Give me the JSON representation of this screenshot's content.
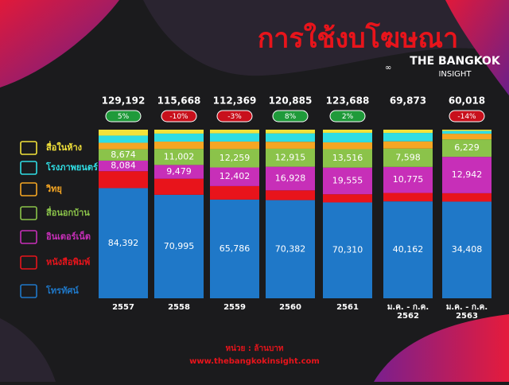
{
  "chart_data": {
    "type": "stacked-bar-normalized",
    "title": "การใช้งบโฆษณา",
    "brand": [
      "THE BANGKOK",
      "INSIGHT"
    ],
    "categories": [
      [
        "2557"
      ],
      [
        "2558"
      ],
      [
        "2559"
      ],
      [
        "2560"
      ],
      [
        "2561"
      ],
      [
        "ม.ค. - ก.ค.",
        "2562"
      ],
      [
        "ม.ค. - ก.ค.",
        "2563"
      ]
    ],
    "totals": [
      129192,
      115668,
      112369,
      120885,
      123688,
      69873,
      60018
    ],
    "total_labels": [
      "129,192",
      "115,668",
      "112,369",
      "120,885",
      "123,688",
      "69,873",
      "60,018"
    ],
    "changes": [
      "5%",
      "-10%",
      "-3%",
      "8%",
      "2%",
      null,
      "-14%"
    ],
    "series": [
      {
        "name": "โทรทัศน์",
        "color": "#1f78c8",
        "values": [
          84392,
          70995,
          65786,
          70382,
          70310,
          40162,
          34408
        ],
        "value_labels": [
          "84,392",
          "70,995",
          "65,786",
          "70,382",
          "70,310",
          "40,162",
          "34,408"
        ]
      },
      {
        "name": "หนังสือพิมพ์",
        "color": "#e8141b",
        "values": [
          13000,
          11000,
          9000,
          7000,
          6000,
          3500,
          3000
        ],
        "value_labels": [
          null,
          null,
          null,
          null,
          null,
          null,
          null
        ]
      },
      {
        "name": "อินเตอร์เน็ต",
        "color": "#c72fb8",
        "values": [
          8084,
          9479,
          12402,
          16928,
          19555,
          10775,
          12942
        ],
        "value_labels": [
          "8,084",
          "9,479",
          "12,402",
          "16,928",
          "19,555",
          "10,775",
          "12,942"
        ]
      },
      {
        "name": "สื่อนอกบ้าน",
        "color": "#8bc34a",
        "values": [
          8674,
          11002,
          12259,
          12915,
          13516,
          7598,
          6229
        ],
        "value_labels": [
          "8,674",
          "11,002",
          "12,259",
          "12,915",
          "13,516",
          "7,598",
          "6,229"
        ]
      },
      {
        "name": "วิทยุ",
        "color": "#f5a623",
        "values": [
          5000,
          5000,
          5000,
          5000,
          5000,
          3000,
          2000
        ],
        "value_labels": [
          null,
          null,
          null,
          null,
          null,
          null,
          null
        ]
      },
      {
        "name": "โรงภาพยนตร์",
        "color": "#30dde3",
        "values": [
          5500,
          5500,
          5500,
          6000,
          7000,
          3500,
          1000
        ],
        "value_labels": [
          null,
          null,
          null,
          null,
          null,
          null,
          null
        ]
      },
      {
        "name": "สื่อในห้าง",
        "color": "#f3e23a",
        "values": [
          4542,
          2692,
          2422,
          2660,
          2307,
          1338,
          439
        ],
        "value_labels": [
          null,
          null,
          null,
          null,
          null,
          null,
          null
        ]
      }
    ],
    "unit_note": "หน่วย : ล้านบาท",
    "website": "www.thebangkokinsight.com"
  }
}
